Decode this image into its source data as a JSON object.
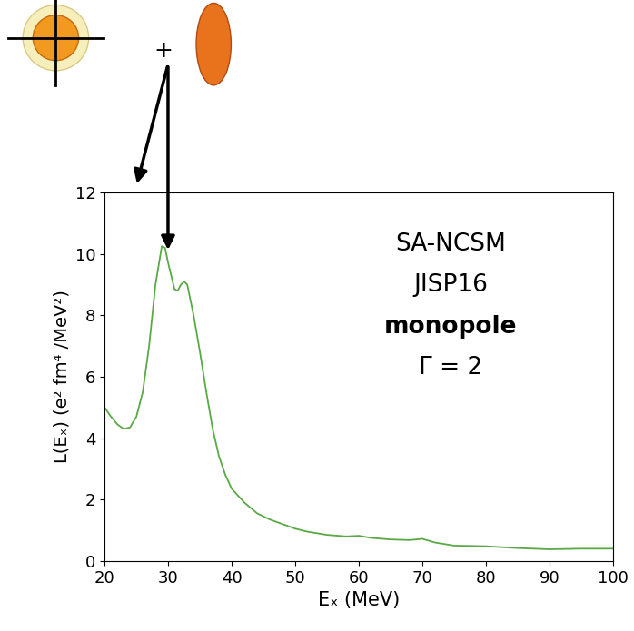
{
  "chart_data": {
    "type": "line",
    "xlabel": "Eₓ (MeV)",
    "ylabel": "L(Eₓ) (e² fm⁴ /MeV²)",
    "annotations": [
      "SA-NCSM",
      "JISP16",
      "monopole",
      "Γ = 2"
    ],
    "diagram_text": "+",
    "color": "#5aa846",
    "x": [
      20,
      21,
      22,
      23,
      24,
      25,
      26,
      27,
      28,
      29,
      29.5,
      30,
      31,
      31.5,
      32,
      32.5,
      33,
      34,
      35,
      36,
      37,
      38,
      39,
      40,
      42,
      44,
      46,
      48,
      50,
      52,
      55,
      58,
      60,
      62,
      65,
      68,
      70,
      72,
      75,
      80,
      85,
      90,
      95,
      100
    ],
    "values": [
      5.0,
      4.7,
      4.45,
      4.3,
      4.35,
      4.7,
      5.5,
      7.0,
      9.0,
      10.25,
      10.2,
      9.7,
      8.85,
      8.8,
      9.0,
      9.1,
      9.0,
      8.0,
      6.8,
      5.5,
      4.3,
      3.4,
      2.8,
      2.35,
      1.9,
      1.55,
      1.35,
      1.2,
      1.05,
      0.95,
      0.85,
      0.8,
      0.82,
      0.75,
      0.7,
      0.68,
      0.72,
      0.6,
      0.5,
      0.48,
      0.42,
      0.38,
      0.4,
      0.4
    ],
    "xlim": [
      20,
      100
    ],
    "xticks": [
      20,
      30,
      40,
      50,
      60,
      70,
      80,
      90,
      100
    ],
    "ylim": [
      0,
      12
    ],
    "yticks": [
      0,
      2,
      4,
      6,
      8,
      10,
      12
    ],
    "grid": false
  }
}
